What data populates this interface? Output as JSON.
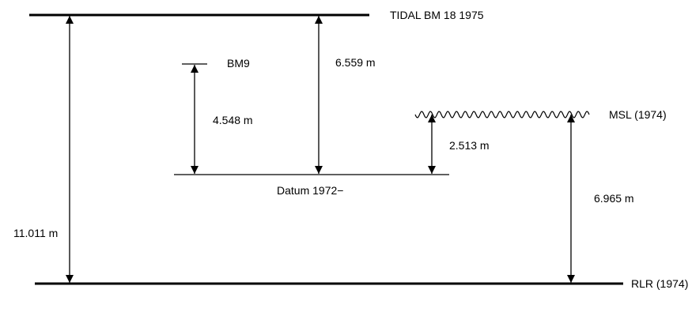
{
  "diagram": {
    "levels": {
      "tidal_bm": "TIDAL BM 18 1975",
      "bm9": "BM9",
      "msl": "MSL (1974)",
      "datum": "Datum 1972−",
      "rlr": "RLR (1974)"
    },
    "measurements": {
      "tidal_to_rlr": "11.011 m",
      "bm9_to_datum": "4.548 m",
      "tidal_to_datum": "6.559 m",
      "msl_to_datum": "2.513 m",
      "msl_to_rlr": "6.965 m"
    },
    "colors": {
      "line": "#000000",
      "background": "#ffffff"
    }
  }
}
